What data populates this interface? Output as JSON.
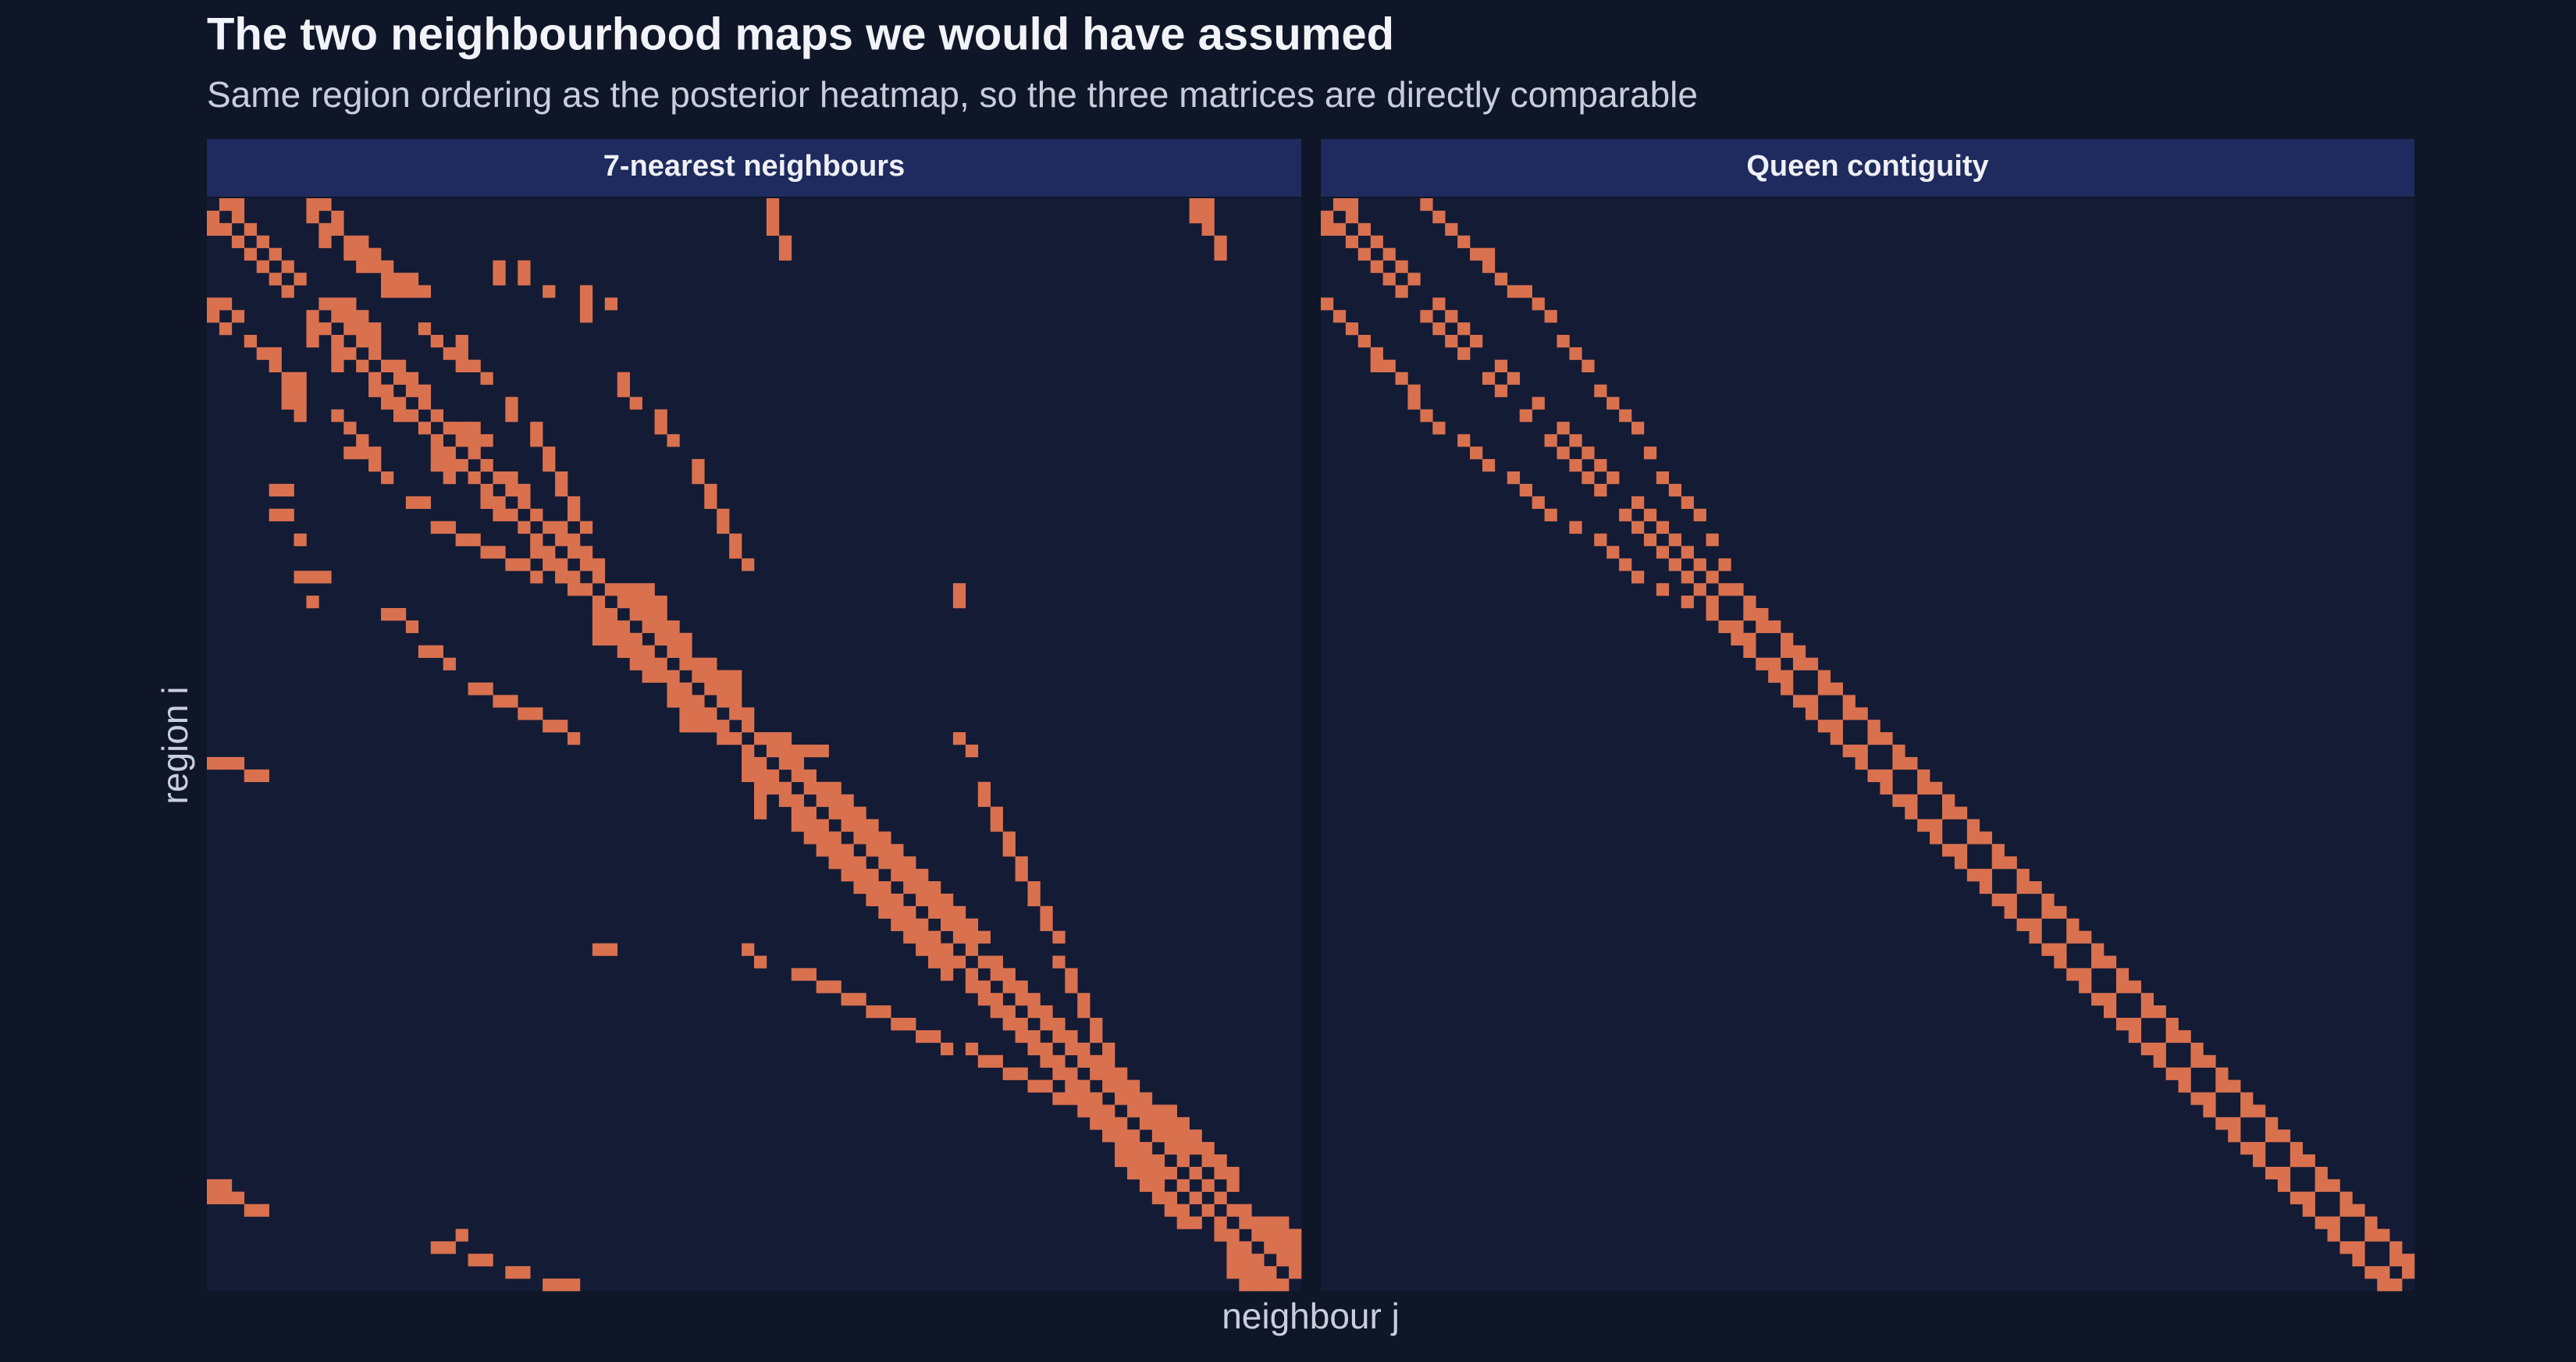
{
  "title": "The two neighbourhood maps we would have assumed",
  "subtitle": "Same region ordering as the posterior heatmap, so the three matrices are directly comparable",
  "x_label": "neighbour j",
  "y_label": "region i",
  "chart_data": [
    {
      "type": "heatmap",
      "title": "7-nearest neighbours",
      "color": "#d9714f",
      "neighbours": [
        [
          1,
          2,
          8,
          9,
          45,
          79,
          80
        ],
        [
          0,
          2,
          8,
          10,
          45,
          79,
          80
        ],
        [
          0,
          1,
          3,
          9,
          10,
          45,
          80
        ],
        [
          2,
          4,
          9,
          11,
          12,
          46,
          81
        ],
        [
          3,
          5,
          11,
          12,
          13,
          46,
          81
        ],
        [
          4,
          6,
          12,
          13,
          14,
          23,
          25
        ],
        [
          5,
          7,
          14,
          15,
          16,
          23,
          25
        ],
        [
          6,
          14,
          15,
          16,
          17,
          27,
          30
        ],
        [
          0,
          1,
          9,
          10,
          11,
          30,
          32
        ],
        [
          0,
          2,
          8,
          10,
          11,
          12,
          30
        ],
        [
          1,
          8,
          9,
          11,
          12,
          13,
          17
        ],
        [
          3,
          8,
          10,
          12,
          13,
          18,
          20
        ],
        [
          4,
          5,
          10,
          11,
          13,
          19,
          20
        ],
        [
          5,
          10,
          12,
          14,
          15,
          20,
          21
        ],
        [
          6,
          7,
          13,
          15,
          16,
          22,
          33
        ],
        [
          6,
          7,
          13,
          14,
          16,
          17,
          33
        ],
        [
          6,
          7,
          14,
          15,
          17,
          24,
          34
        ],
        [
          7,
          10,
          15,
          16,
          18,
          24,
          36
        ],
        [
          11,
          17,
          19,
          20,
          21,
          26,
          36
        ],
        [
          12,
          18,
          20,
          21,
          22,
          26,
          37
        ],
        [
          11,
          12,
          13,
          18,
          19,
          21,
          27
        ],
        [
          13,
          18,
          19,
          20,
          22,
          27,
          39
        ],
        [
          14,
          19,
          21,
          23,
          24,
          28,
          39
        ],
        [
          5,
          6,
          22,
          24,
          25,
          28,
          40
        ],
        [
          16,
          17,
          22,
          23,
          25,
          29,
          40
        ],
        [
          5,
          6,
          23,
          24,
          26,
          29,
          41
        ],
        [
          18,
          19,
          25,
          27,
          28,
          30,
          41
        ],
        [
          7,
          20,
          21,
          26,
          28,
          29,
          42
        ],
        [
          22,
          23,
          26,
          27,
          29,
          30,
          42
        ],
        [
          24,
          25,
          27,
          28,
          30,
          31,
          43
        ],
        [
          7,
          8,
          9,
          26,
          28,
          29,
          31
        ],
        [
          29,
          30,
          32,
          33,
          34,
          35,
          60
        ],
        [
          8,
          31,
          33,
          34,
          35,
          36,
          60
        ],
        [
          14,
          15,
          31,
          32,
          34,
          35,
          36
        ],
        [
          16,
          31,
          32,
          33,
          35,
          36,
          37
        ],
        [
          31,
          32,
          33,
          34,
          36,
          37,
          38
        ],
        [
          17,
          18,
          33,
          34,
          35,
          37,
          38
        ],
        [
          19,
          34,
          35,
          36,
          38,
          39,
          40
        ],
        [
          35,
          36,
          37,
          39,
          40,
          41,
          42
        ],
        [
          21,
          22,
          37,
          38,
          40,
          41,
          42
        ],
        [
          23,
          24,
          37,
          38,
          39,
          41,
          42
        ],
        [
          25,
          26,
          38,
          39,
          40,
          42,
          43
        ],
        [
          27,
          28,
          38,
          39,
          40,
          41,
          43
        ],
        [
          29,
          41,
          42,
          44,
          45,
          46,
          60
        ],
        [
          43,
          45,
          46,
          47,
          48,
          49,
          61
        ],
        [
          0,
          1,
          2,
          43,
          44,
          46,
          47
        ],
        [
          3,
          4,
          43,
          44,
          45,
          47,
          48
        ],
        [
          44,
          45,
          46,
          48,
          49,
          50,
          62
        ],
        [
          44,
          46,
          47,
          49,
          50,
          51,
          62
        ],
        [
          44,
          47,
          48,
          50,
          51,
          52,
          63
        ],
        [
          47,
          48,
          49,
          51,
          52,
          53,
          63
        ],
        [
          48,
          49,
          50,
          52,
          53,
          54,
          64
        ],
        [
          49,
          50,
          51,
          53,
          54,
          55,
          64
        ],
        [
          50,
          51,
          52,
          54,
          55,
          56,
          65
        ],
        [
          51,
          52,
          53,
          55,
          56,
          57,
          65
        ],
        [
          52,
          53,
          54,
          56,
          57,
          58,
          66
        ],
        [
          53,
          54,
          55,
          57,
          58,
          59,
          66
        ],
        [
          54,
          55,
          56,
          58,
          59,
          60,
          67
        ],
        [
          55,
          56,
          57,
          59,
          60,
          61,
          67
        ],
        [
          56,
          57,
          58,
          60,
          61,
          62,
          68
        ],
        [
          31,
          32,
          43,
          57,
          58,
          59,
          61
        ],
        [
          44,
          58,
          59,
          60,
          62,
          63,
          68
        ],
        [
          47,
          48,
          59,
          61,
          63,
          64,
          69
        ],
        [
          49,
          50,
          61,
          62,
          64,
          65,
          69
        ],
        [
          51,
          52,
          62,
          63,
          65,
          66,
          70
        ],
        [
          53,
          54,
          63,
          64,
          66,
          67,
          70
        ],
        [
          55,
          56,
          64,
          65,
          67,
          68,
          71
        ],
        [
          57,
          58,
          65,
          66,
          68,
          69,
          71
        ],
        [
          59,
          61,
          66,
          67,
          69,
          70,
          72
        ],
        [
          62,
          63,
          67,
          68,
          70,
          71,
          72
        ],
        [
          64,
          65,
          68,
          69,
          71,
          72,
          73
        ],
        [
          66,
          67,
          69,
          70,
          72,
          73,
          74
        ],
        [
          68,
          69,
          70,
          71,
          73,
          74,
          75
        ],
        [
          70,
          71,
          72,
          74,
          75,
          76,
          77
        ],
        [
          71,
          72,
          73,
          75,
          76,
          77,
          78
        ],
        [
          72,
          73,
          74,
          76,
          77,
          78,
          79
        ],
        [
          73,
          74,
          75,
          77,
          78,
          79,
          80
        ],
        [
          73,
          74,
          75,
          76,
          78,
          80,
          81
        ],
        [
          74,
          75,
          76,
          77,
          79,
          81,
          82
        ],
        [
          0,
          1,
          75,
          76,
          78,
          80,
          82
        ],
        [
          0,
          1,
          2,
          76,
          77,
          79,
          81
        ],
        [
          3,
          4,
          77,
          78,
          80,
          82,
          83
        ],
        [
          78,
          79,
          81,
          83,
          84,
          85,
          86
        ],
        [
          81,
          82,
          84,
          85,
          86,
          87,
          20
        ],
        [
          82,
          83,
          85,
          86,
          87,
          18,
          19
        ],
        [
          82,
          83,
          84,
          86,
          87,
          21,
          22
        ],
        [
          82,
          83,
          84,
          85,
          87,
          24,
          25
        ],
        [
          83,
          84,
          85,
          86,
          27,
          28,
          29
        ]
      ]
    },
    {
      "type": "heatmap",
      "title": "Queen contiguity",
      "color": "#d9714f",
      "neighbours": [
        [
          1,
          2,
          8
        ],
        [
          0,
          2,
          9
        ],
        [
          0,
          1,
          3,
          10
        ],
        [
          2,
          4,
          11
        ],
        [
          3,
          5,
          12,
          13
        ],
        [
          4,
          6,
          13
        ],
        [
          5,
          7,
          14
        ],
        [
          6,
          15,
          16
        ],
        [
          0,
          9,
          17
        ],
        [
          1,
          8,
          10,
          18
        ],
        [
          2,
          9,
          11
        ],
        [
          3,
          10,
          12,
          19
        ],
        [
          4,
          11,
          20
        ],
        [
          4,
          5,
          14,
          21
        ],
        [
          6,
          13,
          15
        ],
        [
          7,
          14,
          22
        ],
        [
          7,
          17,
          23
        ],
        [
          8,
          16,
          24
        ],
        [
          9,
          19,
          25
        ],
        [
          11,
          18,
          20
        ],
        [
          12,
          19,
          21,
          26
        ],
        [
          13,
          20,
          22
        ],
        [
          15,
          21,
          23,
          27
        ],
        [
          16,
          22,
          28
        ],
        [
          17,
          25,
          29
        ],
        [
          18,
          24,
          26,
          30
        ],
        [
          20,
          25,
          27
        ],
        [
          22,
          26,
          28,
          31
        ],
        [
          23,
          27,
          29
        ],
        [
          24,
          28,
          30,
          32
        ],
        [
          25,
          29,
          31
        ],
        [
          27,
          30,
          32,
          33
        ],
        [
          29,
          31,
          34
        ],
        [
          31,
          34,
          35
        ],
        [
          32,
          33,
          35,
          36
        ],
        [
          33,
          34,
          37
        ],
        [
          34,
          37,
          38
        ],
        [
          35,
          36,
          38,
          39
        ],
        [
          36,
          37,
          40
        ],
        [
          37,
          40,
          41
        ],
        [
          38,
          39,
          42
        ],
        [
          39,
          42,
          43
        ],
        [
          40,
          41,
          44
        ],
        [
          41,
          44,
          45
        ],
        [
          42,
          43,
          46
        ],
        [
          43,
          46,
          47
        ],
        [
          44,
          45,
          48
        ],
        [
          45,
          48,
          49
        ],
        [
          46,
          47,
          50
        ],
        [
          47,
          50,
          51
        ],
        [
          48,
          49,
          52
        ],
        [
          49,
          52,
          53
        ],
        [
          50,
          51,
          54
        ],
        [
          51,
          54,
          55
        ],
        [
          52,
          53,
          56
        ],
        [
          53,
          56,
          57
        ],
        [
          54,
          55,
          58
        ],
        [
          55,
          58,
          59
        ],
        [
          56,
          57,
          60
        ],
        [
          57,
          60,
          61
        ],
        [
          58,
          59,
          62
        ],
        [
          59,
          62,
          63
        ],
        [
          60,
          61,
          64
        ],
        [
          61,
          64,
          65
        ],
        [
          62,
          63,
          66
        ],
        [
          63,
          66,
          67
        ],
        [
          64,
          65,
          68
        ],
        [
          65,
          68,
          69
        ],
        [
          66,
          67,
          70
        ],
        [
          67,
          70,
          71
        ],
        [
          68,
          69,
          72
        ],
        [
          69,
          72,
          73
        ],
        [
          70,
          71,
          74
        ],
        [
          71,
          74,
          75
        ],
        [
          72,
          73,
          76
        ],
        [
          73,
          76,
          77
        ],
        [
          74,
          75,
          78
        ],
        [
          75,
          78,
          79
        ],
        [
          76,
          77,
          80
        ],
        [
          77,
          80,
          81
        ],
        [
          78,
          79,
          82
        ],
        [
          79,
          82,
          83
        ],
        [
          80,
          81,
          84
        ],
        [
          81,
          84,
          85
        ],
        [
          82,
          83,
          86
        ],
        [
          83,
          86,
          87
        ],
        [
          84,
          85,
          87
        ],
        [
          85,
          86
        ]
      ]
    }
  ]
}
